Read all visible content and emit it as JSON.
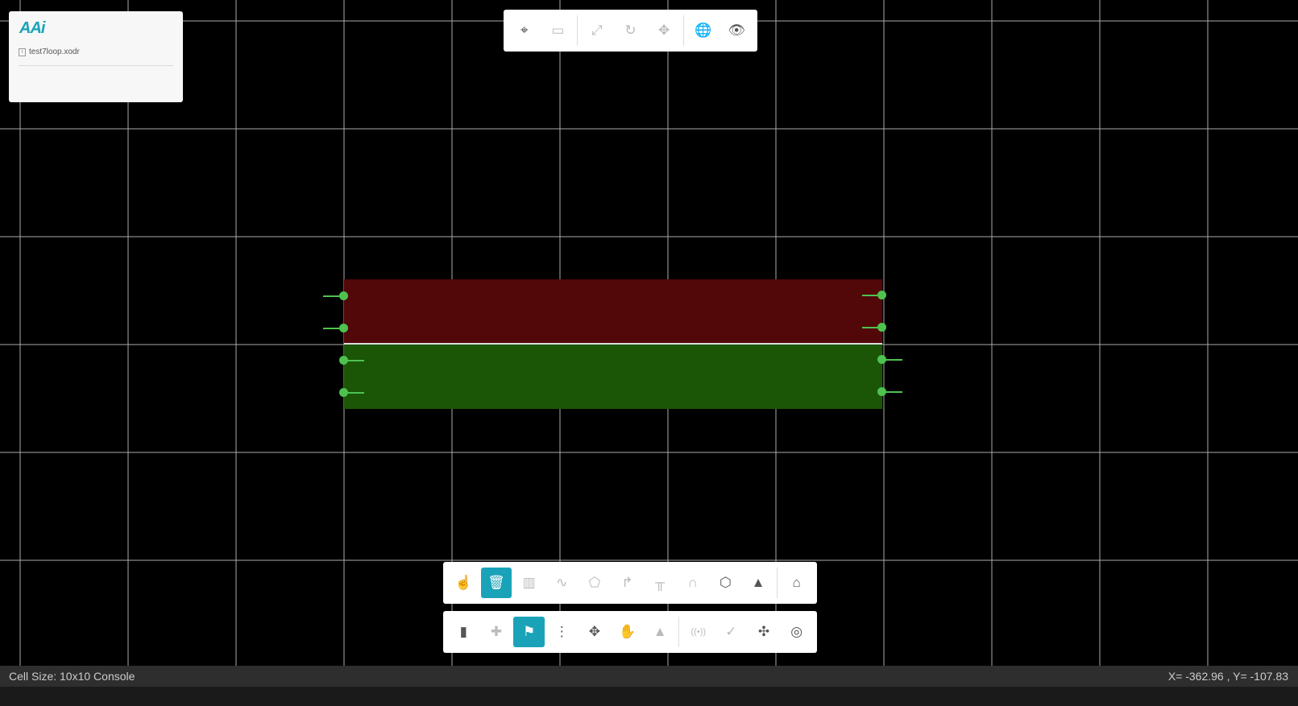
{
  "panel": {
    "logo": "AAi",
    "file_name": "test7loop.xodr"
  },
  "top_toolbar": [
    {
      "icon": "focus-icon",
      "label": "Focus",
      "enabled": true
    },
    {
      "icon": "ruler-icon",
      "label": "Measure",
      "enabled": false
    },
    {
      "icon": "expand-icon",
      "label": "Scale",
      "enabled": false
    },
    {
      "icon": "rotate-icon",
      "label": "Rotate",
      "enabled": false
    },
    {
      "icon": "move-icon",
      "label": "Move",
      "enabled": false
    },
    {
      "icon": "globe-icon",
      "label": "Globe",
      "enabled": true
    },
    {
      "icon": "eye-icon",
      "label": "View",
      "enabled": true
    }
  ],
  "toolbar1": [
    {
      "icon": "pointer-icon",
      "glyph": "☝",
      "enabled": true
    },
    {
      "icon": "trash-icon",
      "glyph": "🗑",
      "active": true
    },
    {
      "icon": "lane-icon",
      "glyph": "▥",
      "enabled": false
    },
    {
      "icon": "curve-icon",
      "glyph": "∿",
      "enabled": false
    },
    {
      "icon": "polygon-icon",
      "glyph": "⬠",
      "enabled": false
    },
    {
      "icon": "turn-sign-icon",
      "glyph": "↱",
      "enabled": false
    },
    {
      "icon": "bridge-icon",
      "glyph": "╥",
      "enabled": false
    },
    {
      "icon": "tunnel-icon",
      "glyph": "∩",
      "enabled": false
    },
    {
      "icon": "objects-icon",
      "glyph": "⬡",
      "enabled": true
    },
    {
      "icon": "lamp-icon",
      "glyph": "▲",
      "enabled": true
    },
    {
      "icon": "tag-icon",
      "glyph": "⌂",
      "enabled": true
    }
  ],
  "toolbar2": [
    {
      "icon": "road-icon",
      "glyph": "▮",
      "enabled": true
    },
    {
      "icon": "junction-icon",
      "glyph": "✚",
      "enabled": false
    },
    {
      "icon": "signpost-icon",
      "glyph": "⚑",
      "active": true
    },
    {
      "icon": "traffic-light-icon",
      "glyph": "⋮",
      "enabled": true
    },
    {
      "icon": "move-arrows-icon",
      "glyph": "✥",
      "enabled": true
    },
    {
      "icon": "hand-icon",
      "glyph": "✋",
      "enabled": true
    },
    {
      "icon": "terrain-icon",
      "glyph": "▲",
      "enabled": false
    },
    {
      "icon": "signal-icon",
      "glyph": "((•))",
      "enabled": false
    },
    {
      "icon": "check-icon",
      "glyph": "✓",
      "enabled": false
    },
    {
      "icon": "roundabout-icon",
      "glyph": "✣",
      "enabled": true
    },
    {
      "icon": "target-icon",
      "glyph": "◎",
      "enabled": true
    }
  ],
  "status": {
    "left": "Cell Size: 10x10 Console",
    "right": "X= -362.96 , Y= -107.83"
  },
  "colors": {
    "accent": "#1aa3b8",
    "lane_left": "#520709",
    "lane_right": "#1a5606",
    "node": "#4ec24e"
  }
}
